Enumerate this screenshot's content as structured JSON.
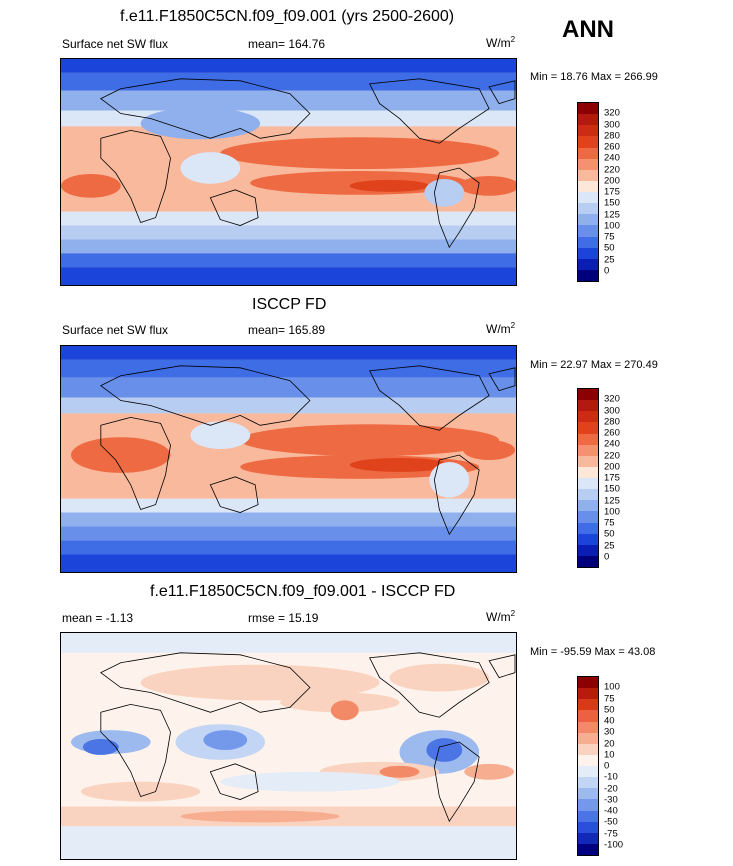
{
  "season": "ANN",
  "panels": [
    {
      "title": "f.e11.F1850C5CN.f09_f09.001 (yrs 2500-2600)",
      "left_label": "Surface net SW flux",
      "center_label": "mean= 164.76",
      "units_base": "W/m",
      "units_sup": "2",
      "minmax": "Min =  18.76 Max = 266.99",
      "colorbar_labels": [
        "320",
        "300",
        "280",
        "260",
        "240",
        "220",
        "200",
        "175",
        "150",
        "125",
        "100",
        "75",
        "50",
        "25",
        "0"
      ]
    },
    {
      "title": "ISCCP FD",
      "left_label": "Surface net SW flux",
      "center_label": "mean= 165.89",
      "units_base": "W/m",
      "units_sup": "2",
      "minmax": "Min =  22.97 Max = 270.49",
      "colorbar_labels": [
        "320",
        "300",
        "280",
        "260",
        "240",
        "220",
        "200",
        "175",
        "150",
        "125",
        "100",
        "75",
        "50",
        "25",
        "0"
      ]
    },
    {
      "title": "f.e11.F1850C5CN.f09_f09.001 - ISCCP FD",
      "left_label": "mean =  -1.13",
      "center_label": "rmse =  15.19",
      "units_base": "W/m",
      "units_sup": "2",
      "minmax": "Min = -95.59 Max =  43.08",
      "colorbar_labels": [
        "100",
        "75",
        "50",
        "40",
        "30",
        "20",
        "10",
        "0",
        "-10",
        "-20",
        "-30",
        "-40",
        "-50",
        "-75",
        "-100"
      ]
    }
  ],
  "colors": {
    "abs_scale": [
      "#8b0000",
      "#b11a0c",
      "#cc2c12",
      "#e0431c",
      "#ee6a42",
      "#f4916e",
      "#f8b99d",
      "#fde7d9",
      "#dbe6f7",
      "#b7cdf1",
      "#8fb0ec",
      "#6890ea",
      "#3f6de6",
      "#1b44db",
      "#0a1eb4",
      "#00007a"
    ],
    "diff_scale": [
      "#8b0000",
      "#b71c0a",
      "#d83a18",
      "#ec6240",
      "#f28a68",
      "#f6ad90",
      "#fad3c0",
      "#fdf3ec",
      "#e4ecf8",
      "#c3d5f4",
      "#9dbaef",
      "#7498ea",
      "#4b74e4",
      "#2a4fdb",
      "#1229b8",
      "#000080"
    ],
    "land_outline": "#000000"
  }
}
